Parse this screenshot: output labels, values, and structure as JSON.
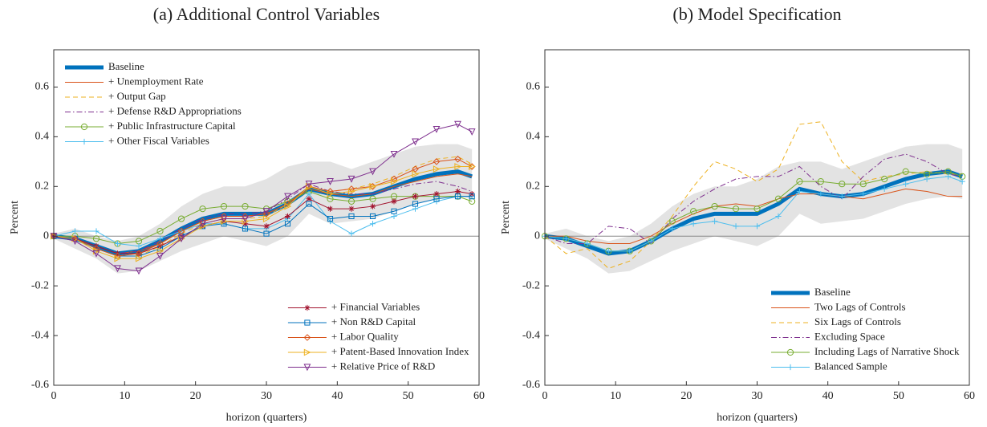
{
  "chart_data": [
    {
      "type": "line",
      "title": "(a) Additional Control Variables",
      "xlabel": "horizon (quarters)",
      "ylabel": "Percent",
      "x": [
        0,
        3,
        6,
        9,
        12,
        15,
        18,
        21,
        24,
        27,
        30,
        33,
        36,
        39,
        42,
        45,
        48,
        51,
        54,
        57,
        59
      ],
      "xlim": [
        0,
        60
      ],
      "xticks": [
        0,
        10,
        20,
        30,
        40,
        50,
        60
      ],
      "ylim": [
        -0.6,
        0.75
      ],
      "yticks": [
        -0.6,
        -0.4,
        -0.2,
        0,
        0.2,
        0.4,
        0.6
      ],
      "band": {
        "color": "#e3e3e3",
        "upper": [
          0.01,
          0.03,
          0.0,
          -0.02,
          0.0,
          0.05,
          0.12,
          0.17,
          0.2,
          0.2,
          0.23,
          0.28,
          0.3,
          0.3,
          0.27,
          0.3,
          0.33,
          0.36,
          0.37,
          0.37,
          0.35
        ],
        "lower": [
          -0.01,
          -0.05,
          -0.09,
          -0.15,
          -0.14,
          -0.1,
          -0.06,
          -0.03,
          0.0,
          -0.02,
          -0.04,
          0.0,
          0.09,
          0.05,
          0.06,
          0.07,
          0.1,
          0.13,
          0.15,
          0.16,
          0.15
        ]
      },
      "series": [
        {
          "name": "Baseline",
          "color": "#0072bd",
          "width": 5,
          "legend_loc": "upper left",
          "values": [
            0,
            -0.01,
            -0.04,
            -0.07,
            -0.06,
            -0.02,
            0.03,
            0.07,
            0.09,
            0.09,
            0.09,
            0.13,
            0.19,
            0.17,
            0.16,
            0.17,
            0.2,
            0.23,
            0.25,
            0.26,
            0.24
          ]
        },
        {
          "name": "+ Unemployment Rate",
          "color": "#d95319",
          "legend_loc": "upper left",
          "values": [
            0,
            -0.01,
            -0.04,
            -0.07,
            -0.06,
            -0.03,
            0.02,
            0.06,
            0.08,
            0.08,
            0.09,
            0.13,
            0.19,
            0.17,
            0.16,
            0.17,
            0.2,
            0.22,
            0.24,
            0.25,
            0.24
          ]
        },
        {
          "name": "+ Output Gap",
          "color": "#edb120",
          "dash": "6,4",
          "legend_loc": "upper left",
          "values": [
            0,
            -0.01,
            -0.05,
            -0.08,
            -0.08,
            -0.04,
            0.01,
            0.05,
            0.07,
            0.07,
            0.08,
            0.13,
            0.2,
            0.18,
            0.19,
            0.21,
            0.24,
            0.28,
            0.31,
            0.32,
            0.29
          ]
        },
        {
          "name": "+ Defense R&D Appropriations",
          "color": "#7e2f8e",
          "dash": "7,3,1.5,3",
          "legend_loc": "upper left",
          "values": [
            0,
            -0.01,
            -0.04,
            -0.07,
            -0.06,
            -0.02,
            0.03,
            0.07,
            0.09,
            0.09,
            0.1,
            0.15,
            0.21,
            0.18,
            0.17,
            0.17,
            0.19,
            0.21,
            0.22,
            0.2,
            0.18
          ]
        },
        {
          "name": "+ Public Infrastructure Capital",
          "color": "#77ac30",
          "marker": "circle",
          "legend_loc": "upper left",
          "values": [
            0,
            0.0,
            -0.01,
            -0.03,
            -0.02,
            0.02,
            0.07,
            0.11,
            0.12,
            0.12,
            0.11,
            0.14,
            0.18,
            0.15,
            0.14,
            0.15,
            0.16,
            0.16,
            0.16,
            0.16,
            0.14
          ]
        },
        {
          "name": "+ Other Fiscal Variables",
          "color": "#4dbeee",
          "marker": "plus",
          "legend_loc": "upper left",
          "values": [
            0,
            0.02,
            0.02,
            -0.03,
            -0.04,
            -0.01,
            0.02,
            0.05,
            0.05,
            0.03,
            0.03,
            0.07,
            0.17,
            0.06,
            0.01,
            0.05,
            0.08,
            0.11,
            0.14,
            0.16,
            0.16
          ]
        },
        {
          "name": "+ Financial Variables",
          "color": "#a2142f",
          "marker": "star",
          "legend_loc": "lower right",
          "values": [
            0,
            -0.01,
            -0.04,
            -0.07,
            -0.07,
            -0.04,
            0.0,
            0.04,
            0.06,
            0.05,
            0.04,
            0.08,
            0.15,
            0.11,
            0.11,
            0.12,
            0.14,
            0.16,
            0.17,
            0.18,
            0.17
          ]
        },
        {
          "name": "+ Non R&D Capital",
          "color": "#0072bd",
          "marker": "square",
          "legend_loc": "lower right",
          "values": [
            0,
            -0.01,
            -0.05,
            -0.08,
            -0.08,
            -0.05,
            0.0,
            0.04,
            0.05,
            0.03,
            0.01,
            0.05,
            0.13,
            0.07,
            0.08,
            0.08,
            0.1,
            0.13,
            0.15,
            0.16,
            0.16
          ]
        },
        {
          "name": "+ Labor Quality",
          "color": "#d95319",
          "marker": "diamond",
          "legend_loc": "lower right",
          "values": [
            0,
            -0.01,
            -0.05,
            -0.08,
            -0.07,
            -0.03,
            0.02,
            0.06,
            0.08,
            0.08,
            0.09,
            0.13,
            0.2,
            0.18,
            0.19,
            0.2,
            0.23,
            0.27,
            0.3,
            0.31,
            0.28
          ]
        },
        {
          "name": "+ Patent-Based Innovation Index",
          "color": "#edb120",
          "marker": "triangle-right",
          "legend_loc": "lower right",
          "values": [
            0,
            -0.01,
            -0.06,
            -0.09,
            -0.09,
            -0.06,
            -0.01,
            0.04,
            0.06,
            0.06,
            0.07,
            0.12,
            0.2,
            0.17,
            0.18,
            0.2,
            0.22,
            0.25,
            0.27,
            0.28,
            0.28
          ]
        },
        {
          "name": "+ Relative Price of R&D",
          "color": "#7e2f8e",
          "marker": "triangle-down",
          "legend_loc": "lower right",
          "values": [
            0,
            -0.02,
            -0.07,
            -0.13,
            -0.14,
            -0.08,
            -0.01,
            0.05,
            0.07,
            0.07,
            0.1,
            0.16,
            0.21,
            0.22,
            0.23,
            0.26,
            0.33,
            0.38,
            0.43,
            0.45,
            0.42
          ]
        }
      ]
    },
    {
      "type": "line",
      "title": "(b) Model Specification",
      "xlabel": "horizon (quarters)",
      "ylabel": "Percent",
      "x": [
        0,
        3,
        6,
        9,
        12,
        15,
        18,
        21,
        24,
        27,
        30,
        33,
        36,
        39,
        42,
        45,
        48,
        51,
        54,
        57,
        59
      ],
      "xlim": [
        0,
        60
      ],
      "xticks": [
        0,
        10,
        20,
        30,
        40,
        50,
        60
      ],
      "ylim": [
        -0.6,
        0.75
      ],
      "yticks": [
        -0.6,
        -0.4,
        -0.2,
        0,
        0.2,
        0.4,
        0.6
      ],
      "band": {
        "color": "#e3e3e3",
        "upper": [
          0.01,
          0.03,
          0.0,
          -0.02,
          0.0,
          0.05,
          0.12,
          0.17,
          0.2,
          0.2,
          0.23,
          0.28,
          0.3,
          0.3,
          0.27,
          0.3,
          0.33,
          0.36,
          0.37,
          0.37,
          0.35
        ],
        "lower": [
          -0.01,
          -0.05,
          -0.09,
          -0.15,
          -0.14,
          -0.1,
          -0.06,
          -0.03,
          0.0,
          -0.02,
          -0.04,
          0.0,
          0.09,
          0.05,
          0.06,
          0.07,
          0.1,
          0.13,
          0.15,
          0.16,
          0.15
        ]
      },
      "series": [
        {
          "name": "Baseline",
          "color": "#0072bd",
          "width": 5,
          "legend_loc": "lower right",
          "values": [
            0,
            -0.01,
            -0.04,
            -0.07,
            -0.06,
            -0.02,
            0.03,
            0.07,
            0.09,
            0.09,
            0.09,
            0.13,
            0.19,
            0.17,
            0.16,
            0.17,
            0.2,
            0.23,
            0.25,
            0.26,
            0.24
          ]
        },
        {
          "name": "Two Lags of Controls",
          "color": "#d95319",
          "legend_loc": "lower right",
          "values": [
            0,
            0.0,
            -0.02,
            -0.03,
            -0.03,
            0.0,
            0.05,
            0.09,
            0.12,
            0.13,
            0.12,
            0.15,
            0.17,
            0.17,
            0.16,
            0.15,
            0.17,
            0.19,
            0.18,
            0.16,
            0.16
          ]
        },
        {
          "name": "Six Lags of Controls",
          "color": "#edb120",
          "dash": "6,4",
          "legend_loc": "lower right",
          "values": [
            0,
            -0.07,
            -0.05,
            -0.13,
            -0.1,
            -0.02,
            0.08,
            0.2,
            0.3,
            0.27,
            0.22,
            0.27,
            0.45,
            0.46,
            0.3,
            0.22,
            0.24,
            0.25,
            0.26,
            0.25,
            0.25
          ]
        },
        {
          "name": "Excluding Space",
          "color": "#7e2f8e",
          "dash": "7,3,1.5,3",
          "legend_loc": "lower right",
          "values": [
            0,
            -0.03,
            -0.03,
            0.04,
            0.03,
            -0.03,
            0.07,
            0.14,
            0.19,
            0.23,
            0.24,
            0.24,
            0.28,
            0.2,
            0.15,
            0.24,
            0.31,
            0.33,
            0.3,
            0.25,
            0.24
          ]
        },
        {
          "name": "Including Lags of Narrative Shock",
          "color": "#77ac30",
          "marker": "circle",
          "legend_loc": "lower right",
          "values": [
            0,
            -0.01,
            -0.03,
            -0.06,
            -0.06,
            -0.02,
            0.06,
            0.1,
            0.12,
            0.11,
            0.11,
            0.15,
            0.22,
            0.22,
            0.21,
            0.21,
            0.23,
            0.26,
            0.25,
            0.26,
            0.24
          ]
        },
        {
          "name": "Balanced Sample",
          "color": "#4dbeee",
          "marker": "plus",
          "legend_loc": "lower right",
          "values": [
            0,
            -0.01,
            -0.03,
            -0.06,
            -0.06,
            -0.02,
            0.03,
            0.05,
            0.06,
            0.04,
            0.04,
            0.08,
            0.18,
            0.17,
            0.16,
            0.17,
            0.19,
            0.21,
            0.23,
            0.24,
            0.22
          ]
        }
      ]
    }
  ]
}
